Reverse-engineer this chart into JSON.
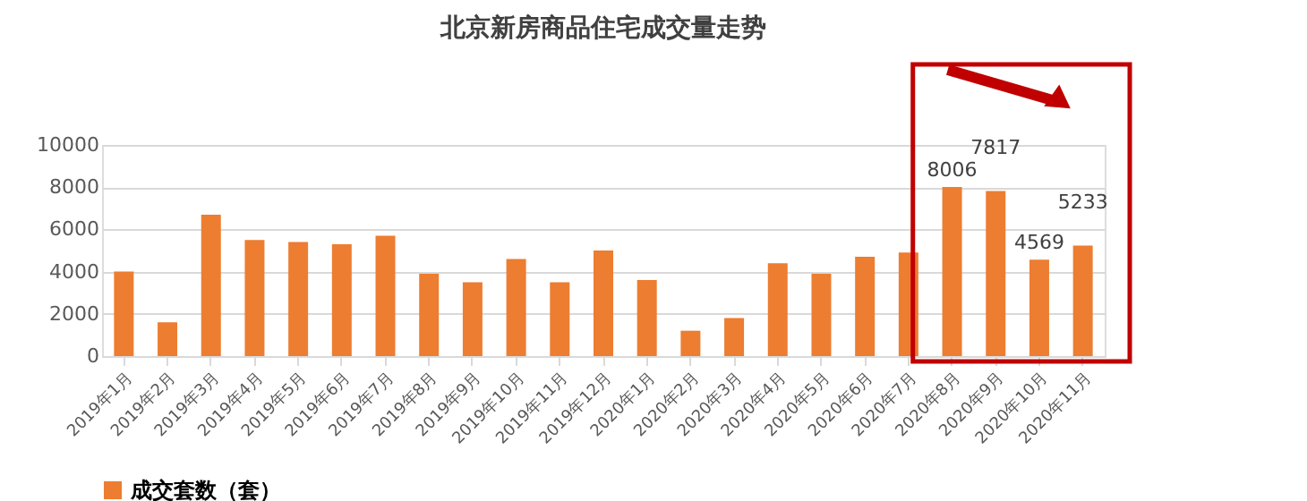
{
  "chart_data": {
    "type": "bar",
    "title": "北京新房商品住宅成交量走势",
    "categories": [
      "2019年1月",
      "2019年2月",
      "2019年3月",
      "2019年4月",
      "2019年5月",
      "2019年6月",
      "2019年7月",
      "2019年8月",
      "2019年9月",
      "2019年10月",
      "2019年11月",
      "2019年12月",
      "2020年1月",
      "2020年2月",
      "2020年3月",
      "2020年4月",
      "2020年5月",
      "2020年6月",
      "2020年7月",
      "2020年8月",
      "2020年9月",
      "2020年10月",
      "2020年11月"
    ],
    "series": [
      {
        "name": "成交套数（套）",
        "color": "#ed7d31",
        "values": [
          4000,
          1600,
          6700,
          5500,
          5400,
          5300,
          5700,
          3900,
          3500,
          4600,
          3500,
          5000,
          3600,
          1200,
          1800,
          4400,
          3900,
          4700,
          4900,
          8006,
          7817,
          4569,
          5233
        ],
        "value_labels": [
          null,
          null,
          null,
          null,
          null,
          null,
          null,
          null,
          null,
          null,
          null,
          null,
          null,
          null,
          null,
          null,
          null,
          null,
          null,
          "8006",
          "7817",
          "4569",
          "5233"
        ]
      }
    ],
    "ylim": [
      0,
      10000
    ],
    "yticks": [
      0,
      2000,
      4000,
      6000,
      8000,
      10000
    ],
    "grid": "y",
    "legend": "bottom"
  }
}
